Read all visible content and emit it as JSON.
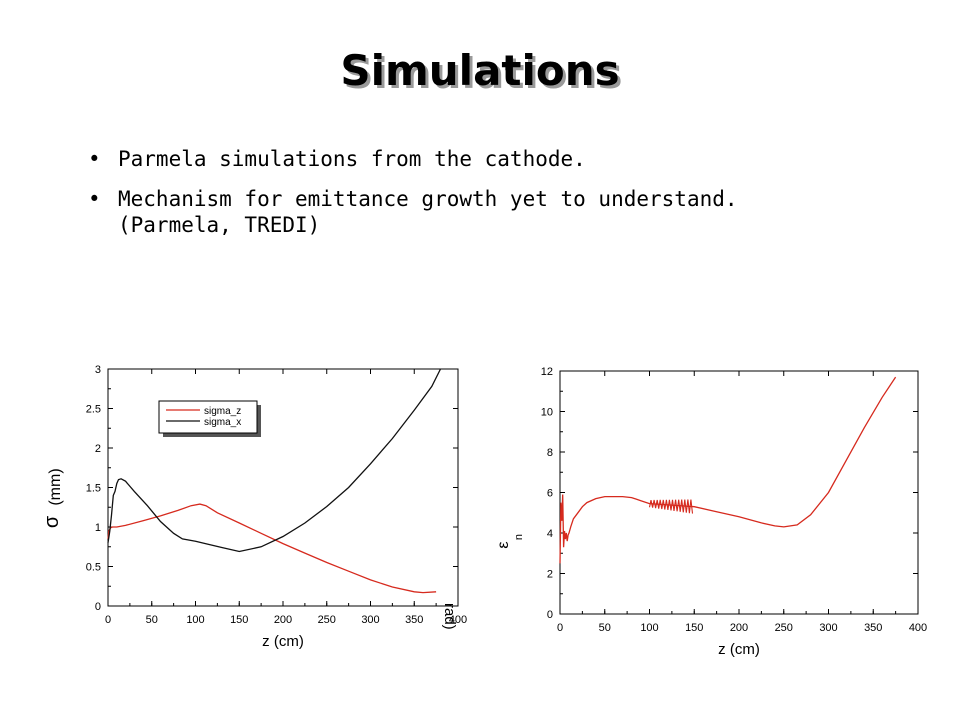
{
  "slide": {
    "title": "Simulations",
    "bullets": [
      {
        "text": "Parmela simulations from the cathode."
      },
      {
        "text": "Mechanism for emittance growth yet to understand.",
        "continuation": "(Parmela, TREDI)"
      }
    ],
    "bullet_glyph": "•"
  },
  "chart_data": [
    {
      "type": "line",
      "xlabel": "z (cm)",
      "ylabel_symbol": "σ",
      "ylabel_unit": "(mm)",
      "clipped_label": "rad)",
      "xlim": [
        0,
        400
      ],
      "ylim": [
        0,
        3
      ],
      "xticks": [
        0,
        50,
        100,
        150,
        200,
        250,
        300,
        350,
        400
      ],
      "yticks": [
        0,
        0.5,
        1,
        1.5,
        2,
        2.5,
        3
      ],
      "ytick_labels": [
        "0",
        "0.5",
        "1",
        "1.5",
        "2",
        "2.5",
        "3"
      ],
      "legend_position": "top-left",
      "series": [
        {
          "name": "sigma_z",
          "color": "#d62a1e",
          "x": [
            0,
            1,
            3,
            5,
            10,
            20,
            40,
            60,
            80,
            95,
            105,
            112,
            125,
            150,
            175,
            200,
            225,
            250,
            275,
            300,
            325,
            350,
            360,
            375
          ],
          "y": [
            0.85,
            0.95,
            0.99,
            1.0,
            1.0,
            1.02,
            1.08,
            1.14,
            1.21,
            1.27,
            1.29,
            1.27,
            1.18,
            1.05,
            0.92,
            0.79,
            0.67,
            0.55,
            0.44,
            0.33,
            0.24,
            0.18,
            0.17,
            0.18
          ]
        },
        {
          "name": "sigma_x",
          "color": "#111111",
          "x": [
            0,
            2,
            4,
            6,
            8,
            10,
            12,
            15,
            20,
            30,
            45,
            60,
            75,
            85,
            100,
            115,
            130,
            150,
            175,
            200,
            225,
            250,
            275,
            300,
            325,
            350,
            370,
            380
          ],
          "y": [
            0.8,
            0.95,
            1.15,
            1.4,
            1.45,
            1.55,
            1.6,
            1.61,
            1.58,
            1.45,
            1.27,
            1.07,
            0.92,
            0.85,
            0.82,
            0.78,
            0.74,
            0.69,
            0.75,
            0.88,
            1.05,
            1.26,
            1.5,
            1.8,
            2.12,
            2.48,
            2.78,
            3.0
          ]
        }
      ]
    },
    {
      "type": "line",
      "xlabel": "z (cm)",
      "ylabel_symbol": "ε",
      "ylabel_sub": "n",
      "xlim": [
        0,
        400
      ],
      "ylim": [
        0,
        12
      ],
      "xticks": [
        0,
        50,
        100,
        150,
        200,
        250,
        300,
        350,
        400
      ],
      "yticks": [
        0,
        2,
        4,
        6,
        8,
        10,
        12
      ],
      "ytick_labels": [
        "0",
        "2",
        "4",
        "6",
        "8",
        "10",
        "12"
      ],
      "series": [
        {
          "color": "#d62a1e",
          "x": [
            0,
            1,
            2,
            3,
            4,
            5,
            6,
            7,
            8,
            9,
            10,
            12,
            15,
            20,
            25,
            30,
            40,
            50,
            60,
            70,
            80,
            90,
            100,
            150,
            175,
            200,
            225,
            240,
            250,
            265,
            280,
            300,
            320,
            340,
            360,
            375
          ],
          "y": [
            2.5,
            5.5,
            4.6,
            5.9,
            3.3,
            4.1,
            3.7,
            4.0,
            3.6,
            3.9,
            4.0,
            4.3,
            4.7,
            5.0,
            5.3,
            5.5,
            5.7,
            5.8,
            5.8,
            5.8,
            5.75,
            5.6,
            5.45,
            5.3,
            5.05,
            4.8,
            4.5,
            4.35,
            4.3,
            4.4,
            4.9,
            6.0,
            7.6,
            9.2,
            10.7,
            11.7
          ]
        }
      ],
      "oscillation": {
        "x_start": 100,
        "x_end": 148,
        "amplitude": 0.35
      }
    }
  ]
}
